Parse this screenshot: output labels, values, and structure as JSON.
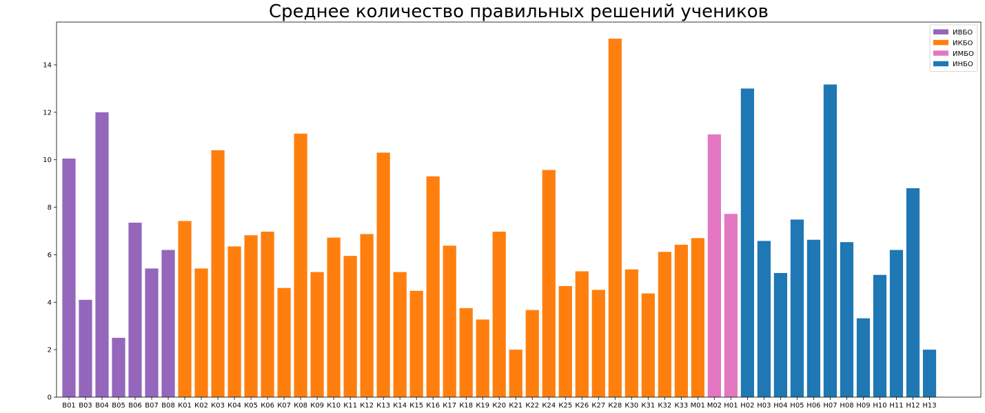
{
  "chart_data": {
    "type": "bar",
    "title": "Среднее количество правильных решений учеников",
    "xlabel": "",
    "ylabel": "",
    "ylim": [
      0,
      15.8
    ],
    "yticks": [
      0,
      2,
      4,
      6,
      8,
      10,
      12,
      14
    ],
    "legend_position": "top-right",
    "grid": false,
    "series": [
      {
        "name": "ИВБО",
        "color": "#9467bd",
        "categories": [
          "В01",
          "В03",
          "В04",
          "В05",
          "В06",
          "В07",
          "В08"
        ],
        "values": [
          10.05,
          4.1,
          12.0,
          2.5,
          7.35,
          5.42,
          6.2
        ]
      },
      {
        "name": "ИКБО",
        "color": "#ff7f0e",
        "categories": [
          "К01",
          "К02",
          "К03",
          "К04",
          "К05",
          "К06",
          "К07",
          "К08",
          "К09",
          "К10",
          "К11",
          "К12",
          "К13",
          "К14",
          "К15",
          "К16",
          "К17",
          "К18",
          "К19",
          "К20",
          "К21",
          "К22",
          "К24",
          "К25",
          "К26",
          "К27",
          "К28",
          "К30",
          "К31",
          "К32",
          "К33",
          "М01"
        ],
        "values": [
          7.42,
          5.42,
          10.4,
          6.35,
          6.82,
          6.97,
          4.6,
          11.1,
          5.27,
          6.72,
          5.95,
          6.87,
          10.3,
          5.27,
          4.48,
          9.3,
          6.38,
          3.75,
          3.27,
          6.97,
          2.0,
          3.67,
          9.57,
          4.68,
          5.3,
          4.52,
          15.1,
          5.38,
          4.37,
          6.12,
          6.42,
          6.7
        ]
      },
      {
        "name": "ИМБО",
        "color": "#e377c2",
        "categories": [
          "М02",
          "Н01"
        ],
        "values": [
          11.07,
          7.72
        ]
      },
      {
        "name": "ИНБО",
        "color": "#1f77b4",
        "categories": [
          "Н02",
          "Н03",
          "Н04",
          "Н05",
          "Н06",
          "Н07",
          "Н08",
          "Н09",
          "Н10",
          "Н11",
          "Н12",
          "Н13"
        ],
        "values": [
          13.0,
          6.58,
          5.23,
          7.48,
          6.63,
          13.17,
          6.53,
          3.32,
          5.15,
          6.2,
          8.8,
          2.0
        ]
      }
    ]
  }
}
